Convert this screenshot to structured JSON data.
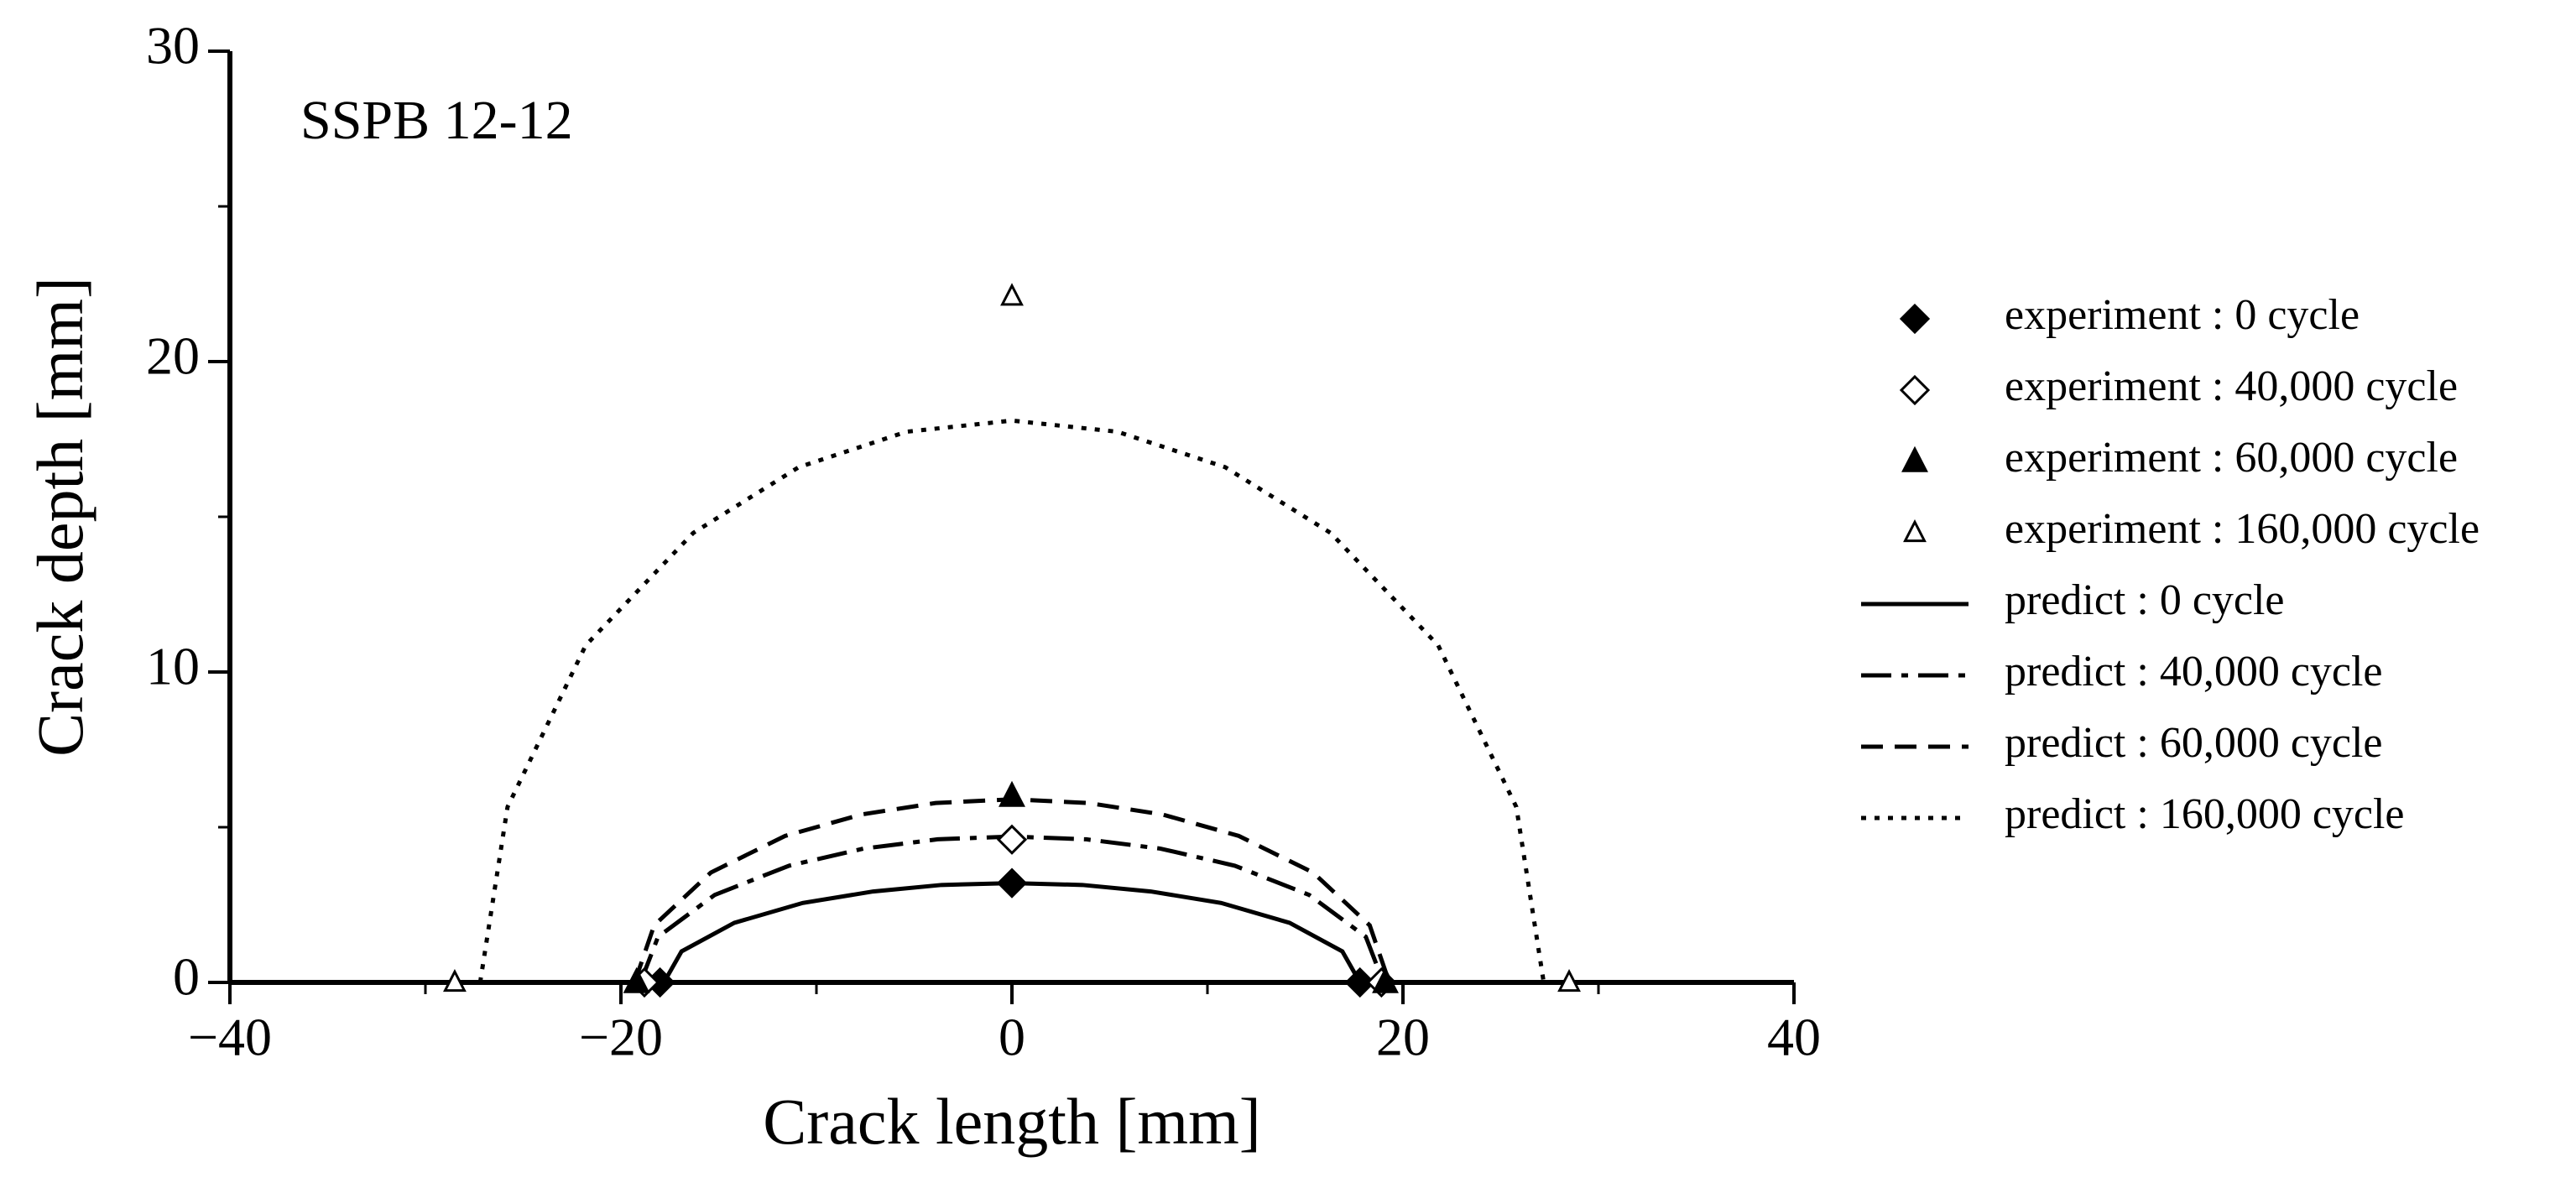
{
  "chart_data": {
    "type": "scatter",
    "annotation": "SSPB 12-12",
    "x_label": "Crack length [mm]",
    "y_label": "Crack depth [mm]",
    "xlim": [
      -40,
      40
    ],
    "ylim": [
      0,
      30
    ],
    "xticks": [
      {
        "value": -40,
        "label": "−40"
      },
      {
        "value": -20,
        "label": "−20"
      },
      0,
      20,
      40
    ],
    "xminorticks": [
      -30,
      -10,
      10,
      30
    ],
    "yticks": [
      0,
      10,
      20,
      30
    ],
    "yminorticks": [
      5,
      15,
      25
    ],
    "legend": "right",
    "series": [
      {
        "name": "experiment : 0 cycle",
        "color": "#000000",
        "marker": "diamond",
        "filled": true,
        "x": [
          -18,
          0,
          17.8
        ],
        "values": [
          0,
          3.2,
          0
        ]
      },
      {
        "name": "experiment : 40,000 cycle",
        "color": "#000000",
        "marker": "diamond",
        "filled": false,
        "x": [
          -18.8,
          0,
          18.9
        ],
        "values": [
          0,
          4.6,
          0
        ]
      },
      {
        "name": "experiment : 60,000 cycle",
        "color": "#000000",
        "marker": "triangle",
        "filled": true,
        "x": [
          -19.2,
          0,
          19.1
        ],
        "values": [
          0,
          6.0,
          0
        ]
      },
      {
        "name": "experiment : 160,000 cycle",
        "color": "#000000",
        "marker": "triangle",
        "filled": false,
        "x": [
          -28.5,
          0,
          28.5
        ],
        "values": [
          0,
          22.1,
          0
        ]
      },
      {
        "name": "predict : 0 cycle",
        "color": "#000000",
        "dash": "solid",
        "x": [
          -17.8,
          -16.9,
          -14.2,
          -10.7,
          -7.1,
          -3.6,
          0,
          3.6,
          7.1,
          10.7,
          14.2,
          16.9,
          17.8
        ],
        "values": [
          0,
          1.0,
          1.92,
          2.56,
          2.93,
          3.14,
          3.2,
          3.14,
          2.93,
          2.56,
          1.92,
          1.0,
          0
        ]
      },
      {
        "name": "predict : 40,000 cycle",
        "color": "#000000",
        "dash": "dashdot",
        "x": [
          -19,
          -18.1,
          -15.2,
          -11.4,
          -7.6,
          -3.8,
          0,
          3.8,
          7.6,
          11.4,
          15.2,
          18.1,
          19
        ],
        "values": [
          0,
          1.47,
          2.82,
          3.76,
          4.31,
          4.61,
          4.7,
          4.61,
          4.31,
          3.76,
          2.82,
          1.47,
          0
        ]
      },
      {
        "name": "predict : 60,000 cycle",
        "color": "#000000",
        "dash": "dashed",
        "x": [
          -19.3,
          -18.3,
          -15.4,
          -11.6,
          -7.7,
          -3.9,
          0,
          3.9,
          7.7,
          11.6,
          15.4,
          18.3,
          19.3
        ],
        "values": [
          0,
          1.84,
          3.54,
          4.72,
          5.41,
          5.78,
          5.9,
          5.78,
          5.41,
          4.72,
          3.54,
          1.84,
          0
        ]
      },
      {
        "name": "predict : 160,000 cycle",
        "color": "#000000",
        "dash": "dotted",
        "x": [
          -27.2,
          -25.8,
          -21.8,
          -16.3,
          -10.9,
          -5.4,
          0,
          5.4,
          10.9,
          16.3,
          21.8,
          25.8,
          27.2
        ],
        "values": [
          0,
          5.65,
          10.86,
          14.48,
          16.6,
          17.74,
          18.1,
          17.74,
          16.6,
          14.48,
          10.86,
          5.65,
          0
        ]
      }
    ]
  }
}
